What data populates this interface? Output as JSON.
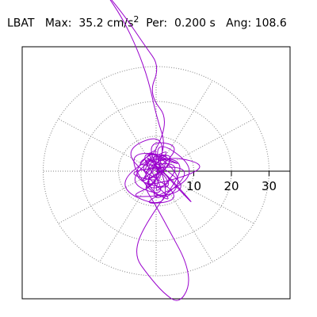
{
  "header": {
    "station": "LBAT",
    "max_label": "Max:",
    "max_value": "35.2",
    "max_unit": "cm/s",
    "max_unit_exp": "2",
    "per_label": "Per:",
    "per_value": "0.200 s",
    "ang_label": "Ang:",
    "ang_value": "108.6"
  },
  "chart_data": {
    "type": "scatter",
    "subtype": "polar particle-motion hodogram",
    "title": "LBAT   Max:   35.2 cm/s2   Per:  0.200 s   Ang: 108.6",
    "radial_ticks": [
      10,
      20,
      30
    ],
    "radial_tick_labels": [
      "10",
      "20",
      "30"
    ],
    "radial_range": [
      0,
      38
    ],
    "grid_rings": [
      10,
      20,
      30
    ],
    "grid_spokes_deg": [
      0,
      30,
      60,
      90,
      120,
      150,
      180,
      210,
      240,
      270,
      300,
      330
    ],
    "grid": true,
    "series": [
      {
        "color": "#9900cc",
        "points": [
          [
            0,
            0
          ],
          [
            3,
            2
          ],
          [
            -5,
            4
          ],
          [
            6,
            -3
          ],
          [
            -4,
            -6
          ],
          [
            2,
            7
          ],
          [
            -7,
            1
          ],
          [
            8,
            3
          ],
          [
            -2,
            -9
          ],
          [
            5,
            8
          ],
          [
            -9,
            -3
          ],
          [
            4,
            -8
          ],
          [
            -6,
            7
          ],
          [
            9,
            1
          ],
          [
            -3,
            5
          ],
          [
            6,
            -6
          ],
          [
            -8,
            -2
          ],
          [
            2,
            9
          ],
          [
            -5,
            -5
          ],
          [
            7,
            4
          ],
          [
            -9,
            6
          ],
          [
            1,
            -10
          ],
          [
            8,
            -2
          ],
          [
            -4,
            8
          ],
          [
            3,
            -4
          ],
          [
            -10,
            0
          ],
          [
            12,
            2
          ],
          [
            -3,
            -12
          ],
          [
            4,
            12
          ],
          [
            -11,
            5
          ],
          [
            9,
            -8
          ],
          [
            -6,
            -10
          ],
          [
            13,
            -1
          ],
          [
            -2,
            11
          ],
          [
            5,
            -12
          ],
          [
            -13,
            -4
          ],
          [
            7,
            9
          ],
          [
            -8,
            -6
          ],
          [
            16,
            1
          ],
          [
            2,
            5
          ],
          [
            -5,
            -3
          ],
          [
            4,
            14
          ],
          [
            -2,
            22
          ],
          [
            1,
            30
          ],
          [
            -3,
            36
          ],
          [
            -8,
            44
          ],
          [
            -14,
            52
          ],
          [
            -9,
            44
          ],
          [
            -5,
            35
          ],
          [
            -2,
            26
          ],
          [
            0,
            16
          ],
          [
            3,
            6
          ],
          [
            -4,
            -4
          ],
          [
            6,
            -10
          ],
          [
            -7,
            3
          ],
          [
            10,
            4
          ],
          [
            -3,
            -15
          ],
          [
            -6,
            -24
          ],
          [
            -2,
            -30
          ],
          [
            2,
            -35
          ],
          [
            6,
            -38
          ],
          [
            9,
            -33
          ],
          [
            8,
            -26
          ],
          [
            4,
            -18
          ],
          [
            0,
            -10
          ],
          [
            -4,
            -3
          ],
          [
            5,
            2
          ],
          [
            -7,
            -5
          ],
          [
            8,
            7
          ],
          [
            -3,
            9
          ],
          [
            2,
            -3
          ],
          [
            -9,
            -8
          ],
          [
            11,
            -6
          ],
          [
            -5,
            6
          ],
          [
            3,
            -1
          ],
          [
            12,
            -12
          ],
          [
            -2,
            4
          ],
          [
            6,
            5
          ],
          [
            -4,
            -7
          ],
          [
            0,
            0
          ]
        ],
        "endpoint_marker": [
          -14,
          52
        ]
      }
    ]
  },
  "colors": {
    "trace": "#9900cc",
    "marker": "#009977",
    "grid": "#808080",
    "axis": "#000000"
  }
}
